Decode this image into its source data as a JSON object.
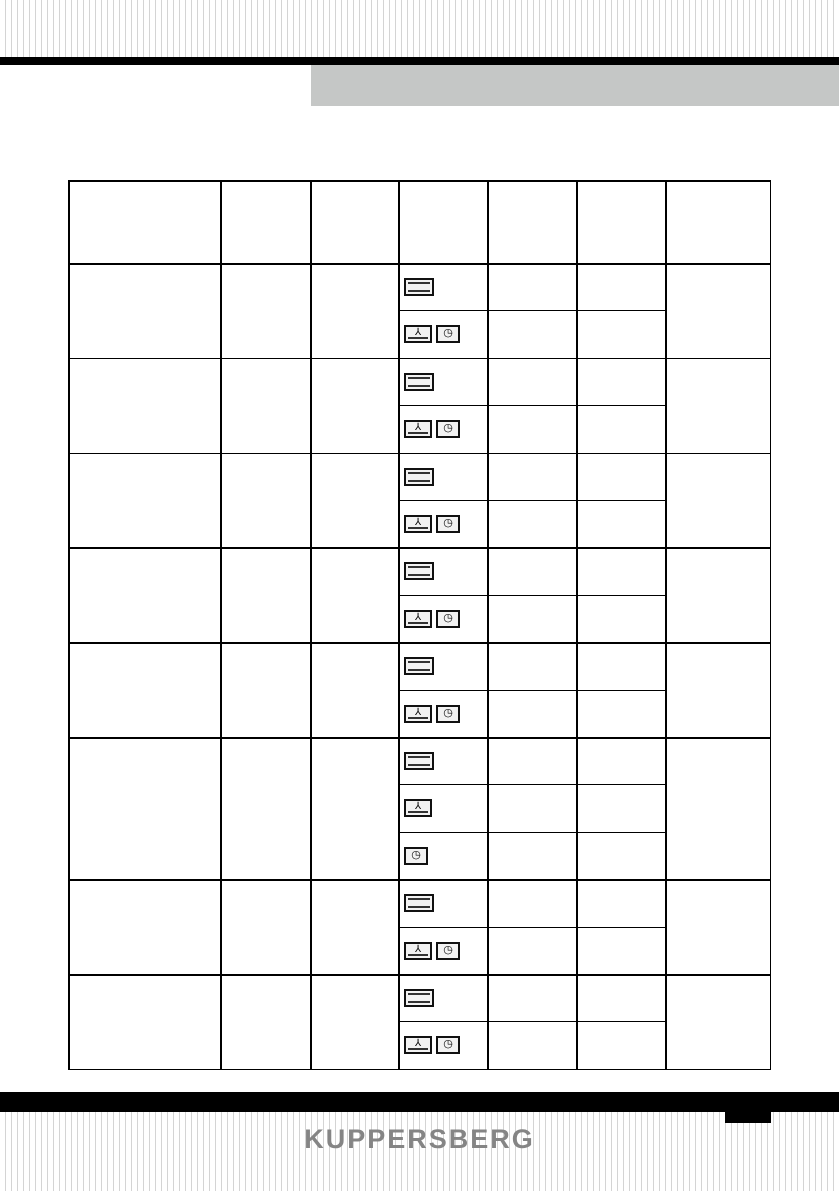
{
  "brand": "KUPPERSBERG",
  "table": {
    "columns": 7,
    "groups": [
      {
        "modes": [
          [
            "heat-top-bottom-icon"
          ],
          [
            "fan-icon",
            "fan-clock-icon"
          ]
        ]
      },
      {
        "modes": [
          [
            "heat-top-bottom-icon"
          ],
          [
            "fan-icon",
            "fan-clock-icon"
          ]
        ]
      },
      {
        "modes": [
          [
            "heat-top-bottom-icon"
          ],
          [
            "fan-icon",
            "fan-clock-icon"
          ]
        ]
      },
      {
        "modes": [
          [
            "heat-top-bottom-icon"
          ],
          [
            "fan-icon",
            "fan-clock-icon"
          ]
        ]
      },
      {
        "modes": [
          [
            "heat-top-bottom-icon"
          ],
          [
            "fan-icon",
            "fan-clock-icon"
          ]
        ]
      },
      {
        "modes": [
          [
            "heat-top-bottom-icon"
          ],
          [
            "fan-icon"
          ],
          [
            "fan-clock-icon"
          ]
        ]
      },
      {
        "modes": [
          [
            "heat-top-bottom-icon"
          ],
          [
            "fan-icon",
            "fan-clock-icon"
          ]
        ]
      },
      {
        "modes": [
          [
            "heat-top-bottom-icon"
          ],
          [
            "fan-icon",
            "fan-clock-icon"
          ]
        ]
      }
    ]
  }
}
